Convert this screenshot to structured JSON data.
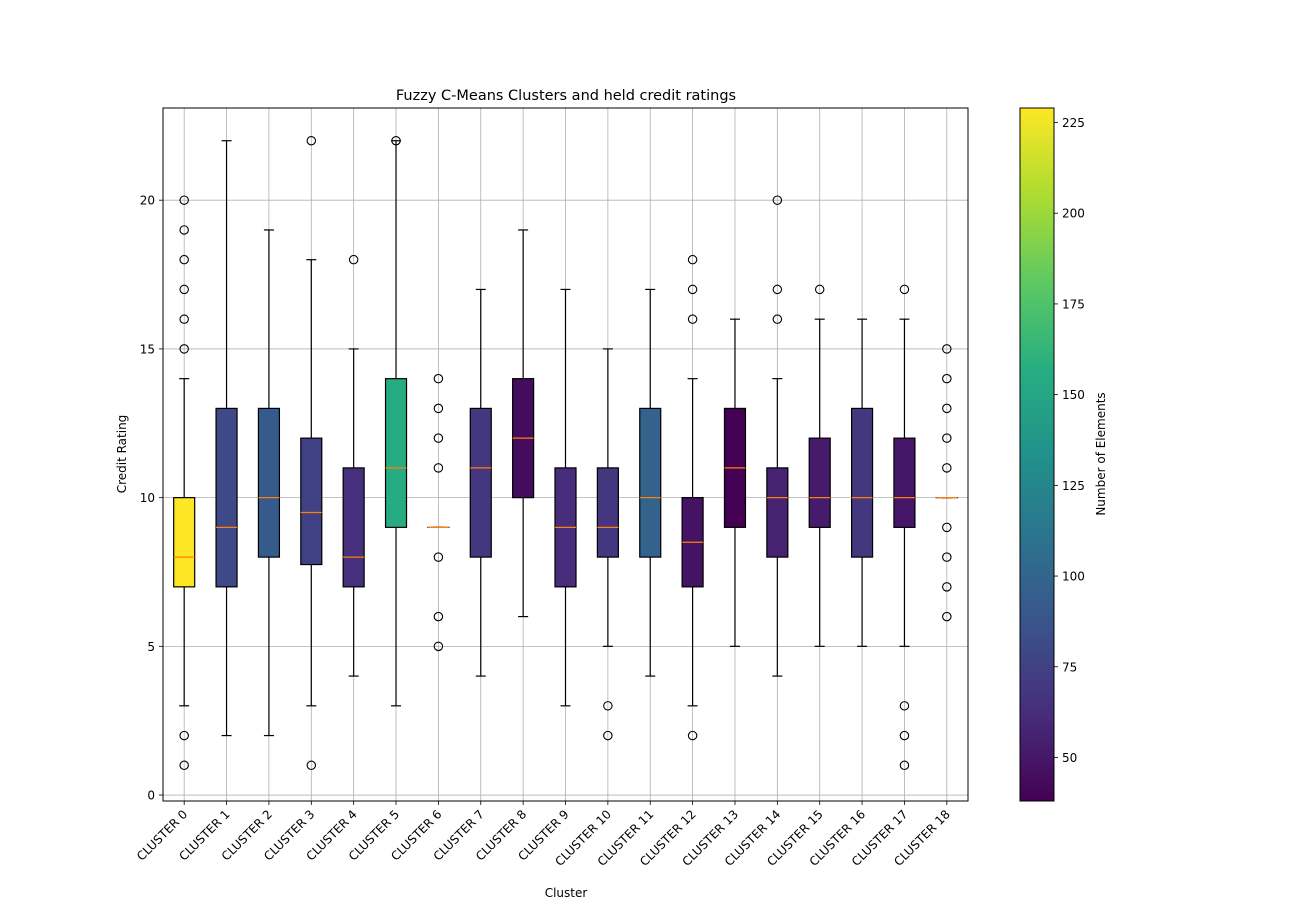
{
  "chart_data": {
    "type": "boxplot",
    "title": "Fuzzy C-Means Clusters and held credit ratings",
    "xlabel": "Cluster",
    "ylabel": "Credit Rating",
    "ylim": [
      -0.2,
      23.1
    ],
    "yticks": [
      0,
      5,
      10,
      15,
      20
    ],
    "grid": true,
    "colorbar": {
      "label": "Number of Elements",
      "range": [
        38,
        229
      ],
      "ticks": [
        50,
        75,
        100,
        125,
        150,
        175,
        200,
        225
      ],
      "colormap": "viridis"
    },
    "categories": [
      "CLUSTER 0",
      "CLUSTER 1",
      "CLUSTER 2",
      "CLUSTER 3",
      "CLUSTER 4",
      "CLUSTER 5",
      "CLUSTER 6",
      "CLUSTER 7",
      "CLUSTER 8",
      "CLUSTER 9",
      "CLUSTER 10",
      "CLUSTER 11",
      "CLUSTER 12",
      "CLUSTER 13",
      "CLUSTER 14",
      "CLUSTER 15",
      "CLUSTER 16",
      "CLUSTER 17",
      "CLUSTER 18"
    ],
    "boxes": [
      {
        "whislo": 3,
        "q1": 7,
        "med": 8,
        "q3": 10,
        "whishi": 14,
        "fliers": [
          1,
          2,
          15,
          16,
          17,
          18,
          19,
          20
        ],
        "count": 229
      },
      {
        "whislo": 2,
        "q1": 7,
        "med": 9,
        "q3": 13,
        "whishi": 22,
        "fliers": [],
        "count": 80
      },
      {
        "whislo": 2,
        "q1": 8,
        "med": 10,
        "q3": 13,
        "whishi": 19,
        "fliers": [],
        "count": 92
      },
      {
        "whislo": 3,
        "q1": 7.75,
        "med": 9.5,
        "q3": 12,
        "whishi": 18,
        "fliers": [
          1,
          22
        ],
        "count": 75
      },
      {
        "whislo": 4,
        "q1": 7,
        "med": 8,
        "q3": 11,
        "whishi": 15,
        "fliers": [
          18
        ],
        "count": 63
      },
      {
        "whislo": 3,
        "q1": 9,
        "med": 11,
        "q3": 14,
        "whishi": 22,
        "fliers": [
          22
        ],
        "count": 155
      },
      {
        "whislo": 9,
        "q1": 9,
        "med": 9,
        "q3": 9,
        "whishi": 9,
        "fliers": [
          5,
          6,
          8,
          11,
          12,
          13,
          14
        ],
        "count": 68
      },
      {
        "whislo": 4,
        "q1": 8,
        "med": 11,
        "q3": 13,
        "whishi": 17,
        "fliers": [],
        "count": 68
      },
      {
        "whislo": 6,
        "q1": 10,
        "med": 12,
        "q3": 14,
        "whishi": 19,
        "fliers": [],
        "count": 44
      },
      {
        "whislo": 3,
        "q1": 7,
        "med": 9,
        "q3": 11,
        "whishi": 17,
        "fliers": [],
        "count": 62
      },
      {
        "whislo": 5,
        "q1": 8,
        "med": 9,
        "q3": 11,
        "whishi": 15,
        "fliers": [
          2,
          3
        ],
        "count": 68
      },
      {
        "whislo": 4,
        "q1": 8,
        "med": 10,
        "q3": 13,
        "whishi": 17,
        "fliers": [],
        "count": 98
      },
      {
        "whislo": 3,
        "q1": 7,
        "med": 8.5,
        "q3": 10,
        "whishi": 14,
        "fliers": [
          2,
          16,
          17,
          18
        ],
        "count": 48
      },
      {
        "whislo": 5,
        "q1": 9,
        "med": 11,
        "q3": 13,
        "whishi": 16,
        "fliers": [],
        "count": 38
      },
      {
        "whislo": 4,
        "q1": 8,
        "med": 10,
        "q3": 11,
        "whishi": 14,
        "fliers": [
          16,
          17,
          20
        ],
        "count": 56
      },
      {
        "whislo": 5,
        "q1": 9,
        "med": 10,
        "q3": 12,
        "whishi": 16,
        "fliers": [
          17
        ],
        "count": 52
      },
      {
        "whislo": 5,
        "q1": 8,
        "med": 10,
        "q3": 13,
        "whishi": 16,
        "fliers": [],
        "count": 68
      },
      {
        "whislo": 5,
        "q1": 9,
        "med": 10,
        "q3": 12,
        "whishi": 16,
        "fliers": [
          1,
          2,
          3,
          17
        ],
        "count": 50
      },
      {
        "whislo": 10,
        "q1": 10,
        "med": 10,
        "q3": 10,
        "whishi": 10,
        "fliers": [
          6,
          7,
          8,
          9,
          11,
          12,
          13,
          14,
          15
        ],
        "count": 50
      }
    ]
  }
}
